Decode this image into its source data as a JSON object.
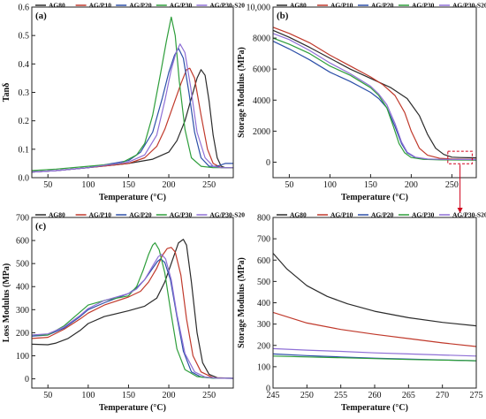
{
  "series_colors": {
    "AG80": "#2b2b2b",
    "AG/P10": "#c0392b",
    "AG/P20": "#2c4fa8",
    "AG/P30": "#2e9e3b",
    "AG/P30-S20": "#8e6fd6"
  },
  "zoom_box_color": "#d0021b",
  "chart_data": [
    {
      "id": "a",
      "type": "line",
      "label": "(a)",
      "xlabel": "Temperature (°C)",
      "ylabel": "Tanδ",
      "xlim": [
        30,
        280
      ],
      "ylim": [
        0.0,
        0.6
      ],
      "xticks": [
        50,
        100,
        150,
        200,
        250
      ],
      "xtick_labels": [
        "50",
        "100",
        "150",
        "200",
        "250"
      ],
      "yticks": [
        0.0,
        0.1,
        0.2,
        0.3,
        0.4,
        0.5,
        0.6
      ],
      "ytick_labels": [
        "0.0",
        "0.1",
        "0.2",
        "0.3",
        "0.4",
        "0.5",
        "0.6"
      ],
      "legend_position": "top",
      "series": [
        {
          "name": "AG80",
          "x": [
            30,
            60,
            100,
            150,
            180,
            200,
            210,
            220,
            228,
            235,
            240,
            245,
            250,
            255,
            260,
            265,
            270,
            280
          ],
          "y": [
            0.02,
            0.025,
            0.035,
            0.05,
            0.065,
            0.09,
            0.13,
            0.2,
            0.28,
            0.35,
            0.38,
            0.36,
            0.27,
            0.15,
            0.07,
            0.04,
            0.035,
            0.035
          ]
        },
        {
          "name": "AG/P10",
          "x": [
            30,
            60,
            100,
            150,
            170,
            185,
            195,
            205,
            215,
            222,
            226,
            232,
            240,
            248,
            255,
            265,
            280
          ],
          "y": [
            0.02,
            0.025,
            0.035,
            0.05,
            0.07,
            0.11,
            0.17,
            0.25,
            0.33,
            0.38,
            0.385,
            0.35,
            0.22,
            0.1,
            0.05,
            0.035,
            0.035
          ]
        },
        {
          "name": "AG/P20",
          "x": [
            30,
            60,
            100,
            150,
            165,
            180,
            192,
            200,
            207,
            212,
            218,
            225,
            232,
            240,
            250,
            260,
            270,
            280
          ],
          "y": [
            0.02,
            0.025,
            0.035,
            0.06,
            0.09,
            0.16,
            0.28,
            0.37,
            0.43,
            0.455,
            0.42,
            0.3,
            0.16,
            0.07,
            0.04,
            0.04,
            0.05,
            0.05
          ]
        },
        {
          "name": "AG/P30",
          "x": [
            30,
            60,
            100,
            140,
            160,
            170,
            180,
            190,
            197,
            203,
            208,
            213,
            220,
            228,
            240,
            255,
            270,
            280
          ],
          "y": [
            0.025,
            0.03,
            0.04,
            0.05,
            0.08,
            0.12,
            0.22,
            0.37,
            0.48,
            0.565,
            0.5,
            0.34,
            0.17,
            0.07,
            0.04,
            0.035,
            0.035,
            0.035
          ]
        },
        {
          "name": "AG/P30-S20",
          "x": [
            30,
            60,
            100,
            150,
            170,
            185,
            195,
            203,
            209,
            214,
            220,
            227,
            235,
            245,
            255,
            265,
            280
          ],
          "y": [
            0.02,
            0.025,
            0.035,
            0.055,
            0.08,
            0.15,
            0.27,
            0.38,
            0.44,
            0.47,
            0.44,
            0.32,
            0.16,
            0.07,
            0.04,
            0.035,
            0.035
          ]
        }
      ]
    },
    {
      "id": "b",
      "type": "line",
      "label": "(b)",
      "xlabel": "Temperature (°C)",
      "ylabel": "Storage Modulus (MPa)",
      "xlim": [
        30,
        280
      ],
      "ylim": [
        -1000,
        10000
      ],
      "xticks": [
        50,
        100,
        150,
        200,
        250
      ],
      "xtick_labels": [
        "50",
        "100",
        "150",
        "200",
        "250"
      ],
      "yticks": [
        0,
        2000,
        4000,
        6000,
        8000,
        10000
      ],
      "ytick_labels": [
        "0",
        "2000",
        "4000",
        "6000",
        "8000",
        "10,000"
      ],
      "legend_position": "top",
      "zoom_box": {
        "x": [
          245,
          275
        ],
        "y": [
          -100,
          700
        ]
      },
      "series": [
        {
          "name": "AG80",
          "x": [
            30,
            50,
            75,
            100,
            125,
            150,
            175,
            195,
            210,
            220,
            230,
            240,
            250,
            260,
            270,
            280
          ],
          "y": [
            8500,
            8050,
            7400,
            6700,
            6000,
            5400,
            4800,
            4100,
            3000,
            1800,
            900,
            500,
            320,
            300,
            290,
            280
          ]
        },
        {
          "name": "AG/P10",
          "x": [
            30,
            50,
            75,
            100,
            125,
            150,
            165,
            180,
            192,
            200,
            210,
            220,
            235,
            250,
            265,
            280
          ],
          "y": [
            8700,
            8300,
            7700,
            6900,
            6200,
            5500,
            5000,
            4300,
            3200,
            2000,
            900,
            450,
            250,
            200,
            190,
            185
          ]
        },
        {
          "name": "AG/P20",
          "x": [
            30,
            50,
            75,
            100,
            125,
            150,
            160,
            170,
            180,
            188,
            195,
            205,
            220,
            240,
            260,
            280
          ],
          "y": [
            7800,
            7300,
            6600,
            5800,
            5200,
            4500,
            4100,
            3500,
            2300,
            1200,
            600,
            300,
            180,
            160,
            150,
            140
          ]
        },
        {
          "name": "AG/P30",
          "x": [
            30,
            50,
            75,
            100,
            125,
            150,
            160,
            170,
            178,
            185,
            192,
            200,
            215,
            235,
            260,
            280
          ],
          "y": [
            8000,
            7600,
            7000,
            6200,
            5600,
            4800,
            4300,
            3500,
            2300,
            1200,
            600,
            300,
            180,
            150,
            140,
            130
          ]
        },
        {
          "name": "AG/P30-S20",
          "x": [
            30,
            50,
            75,
            100,
            125,
            150,
            160,
            170,
            180,
            188,
            195,
            205,
            220,
            240,
            260,
            280
          ],
          "y": [
            8300,
            7900,
            7200,
            6400,
            5700,
            4900,
            4400,
            3700,
            2500,
            1300,
            650,
            320,
            200,
            180,
            175,
            170
          ]
        }
      ]
    },
    {
      "id": "c",
      "type": "line",
      "label": "(c)",
      "xlabel": "Temperature (°C)",
      "ylabel": "Loss Modulus (MPa)",
      "xlim": [
        30,
        280
      ],
      "ylim": [
        -40,
        700
      ],
      "xticks": [
        50,
        100,
        150,
        200,
        250
      ],
      "xtick_labels": [
        "50",
        "100",
        "150",
        "200",
        "250"
      ],
      "yticks": [
        0,
        100,
        200,
        300,
        400,
        500,
        600,
        700
      ],
      "ytick_labels": [
        "0",
        "100",
        "200",
        "300",
        "400",
        "500",
        "600",
        "700"
      ],
      "legend_position": "top",
      "series": [
        {
          "name": "AG80",
          "x": [
            30,
            50,
            60,
            75,
            90,
            100,
            120,
            150,
            170,
            185,
            195,
            205,
            212,
            218,
            222,
            228,
            235,
            242,
            250,
            260,
            280
          ],
          "y": [
            150,
            148,
            155,
            175,
            210,
            240,
            270,
            295,
            315,
            350,
            420,
            520,
            590,
            605,
            580,
            420,
            200,
            70,
            20,
            5,
            2
          ]
        },
        {
          "name": "AG/P10",
          "x": [
            30,
            50,
            70,
            90,
            100,
            120,
            150,
            165,
            175,
            185,
            192,
            198,
            203,
            208,
            215,
            222,
            230,
            240,
            255,
            280
          ],
          "y": [
            175,
            180,
            215,
            260,
            285,
            320,
            355,
            380,
            420,
            480,
            535,
            565,
            570,
            550,
            450,
            260,
            100,
            30,
            5,
            2
          ]
        },
        {
          "name": "AG/P20",
          "x": [
            30,
            50,
            70,
            90,
            100,
            120,
            150,
            160,
            170,
            180,
            186,
            190,
            195,
            202,
            210,
            218,
            228,
            240,
            255,
            280
          ],
          "y": [
            185,
            190,
            220,
            270,
            300,
            330,
            370,
            395,
            430,
            480,
            510,
            520,
            505,
            430,
            270,
            120,
            30,
            8,
            3,
            2
          ]
        },
        {
          "name": "AG/P30",
          "x": [
            30,
            50,
            70,
            90,
            100,
            120,
            150,
            160,
            168,
            175,
            180,
            183,
            188,
            195,
            202,
            210,
            220,
            235,
            255,
            280
          ],
          "y": [
            190,
            190,
            230,
            290,
            320,
            340,
            360,
            400,
            470,
            540,
            580,
            590,
            560,
            460,
            300,
            130,
            40,
            10,
            3,
            2
          ]
        },
        {
          "name": "AG/P30-S20",
          "x": [
            30,
            50,
            70,
            90,
            100,
            120,
            150,
            160,
            170,
            180,
            187,
            191,
            196,
            203,
            210,
            220,
            232,
            245,
            260,
            280
          ],
          "y": [
            190,
            195,
            225,
            275,
            305,
            340,
            370,
            390,
            430,
            490,
            530,
            540,
            520,
            430,
            280,
            110,
            30,
            8,
            3,
            2
          ]
        }
      ]
    },
    {
      "id": "d",
      "type": "line",
      "label": "",
      "xlabel": "Temperature (°C)",
      "ylabel": "Storage Modulus (MPa)",
      "xlim": [
        245,
        275
      ],
      "ylim": [
        0,
        800
      ],
      "xticks": [
        245,
        250,
        255,
        260,
        265,
        270,
        275
      ],
      "xtick_labels": [
        "245",
        "250",
        "255",
        "260",
        "265",
        "270",
        "275"
      ],
      "yticks": [
        0,
        100,
        200,
        300,
        400,
        500,
        600,
        700,
        800
      ],
      "ytick_labels": [
        "0",
        "100",
        "200",
        "300",
        "400",
        "500",
        "600",
        "700",
        "800"
      ],
      "legend_position": "top",
      "series": [
        {
          "name": "AG80",
          "x": [
            245,
            247,
            250,
            253,
            256,
            260,
            265,
            270,
            275
          ],
          "y": [
            632,
            560,
            480,
            430,
            395,
            360,
            330,
            308,
            292
          ]
        },
        {
          "name": "AG/P10",
          "x": [
            245,
            250,
            255,
            260,
            265,
            270,
            275
          ],
          "y": [
            355,
            305,
            275,
            252,
            232,
            212,
            195
          ]
        },
        {
          "name": "AG/P20",
          "x": [
            245,
            250,
            255,
            260,
            265,
            270,
            275
          ],
          "y": [
            160,
            152,
            146,
            140,
            136,
            132,
            128
          ]
        },
        {
          "name": "AG/P30",
          "x": [
            245,
            250,
            255,
            260,
            265,
            270,
            275
          ],
          "y": [
            150,
            146,
            142,
            138,
            134,
            131,
            128
          ]
        },
        {
          "name": "AG/P30-S20",
          "x": [
            245,
            250,
            255,
            260,
            265,
            270,
            275
          ],
          "y": [
            185,
            178,
            172,
            165,
            160,
            155,
            150
          ]
        }
      ]
    }
  ]
}
